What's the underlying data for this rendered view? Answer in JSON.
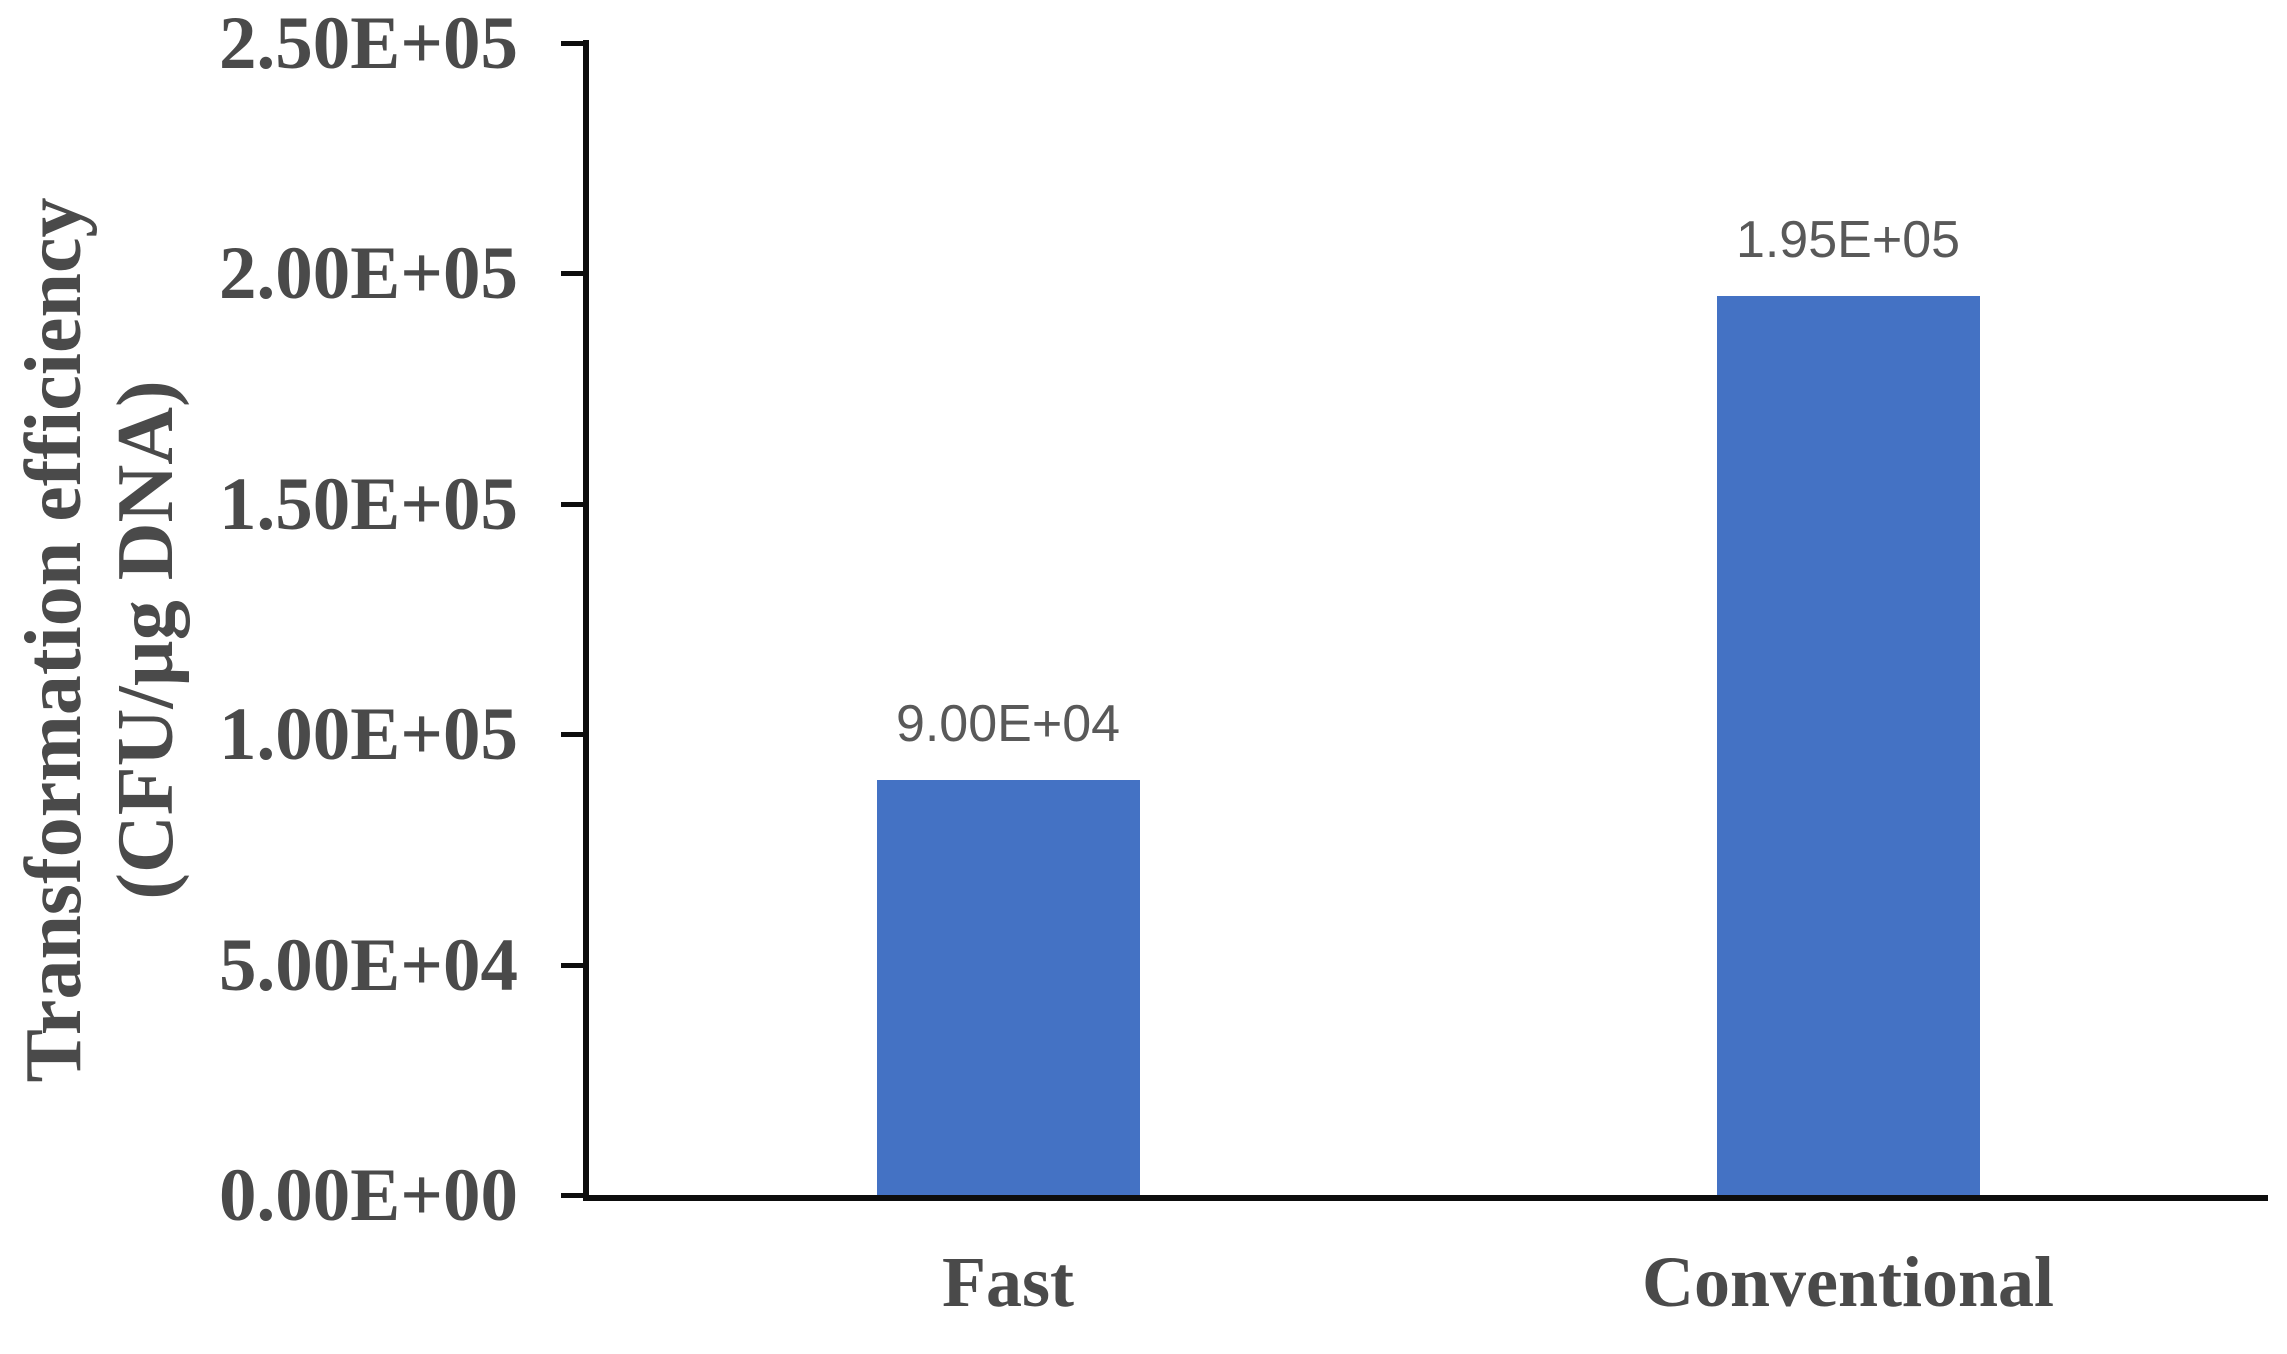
{
  "chart_data": {
    "type": "bar",
    "title": "",
    "xlabel": "",
    "ylabel": "Transformation efficiency (CFU/µg DNA)",
    "ylabel_line1": "Transformation efficiency",
    "ylabel_line2": "(CFU/µg DNA)",
    "categories": [
      "Fast",
      "Conventional"
    ],
    "values": [
      90000,
      195000
    ],
    "data_labels": [
      "9.00E+04",
      "1.95E+05"
    ],
    "ylim": [
      0,
      250000
    ],
    "ytick_values": [
      0,
      50000,
      100000,
      150000,
      200000,
      250000
    ],
    "ytick_labels": [
      "0.00E+00",
      "5.00E+04",
      "1.00E+05",
      "1.50E+05",
      "2.00E+05",
      "2.50E+05"
    ],
    "grid": false,
    "legend": false,
    "bar_color": "#4472C4",
    "axis_color": "#0d0d0d",
    "axis_text_color": "#4a4a4a",
    "data_label_color": "#595959"
  }
}
